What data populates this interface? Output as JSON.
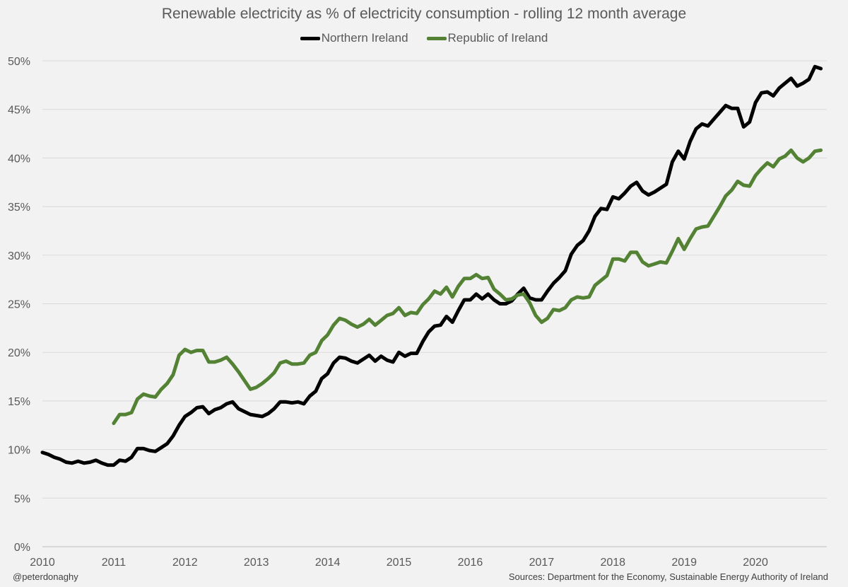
{
  "chart_data": {
    "type": "line",
    "title": "Renewable electricity as % of electricity consumption - rolling 12 month average",
    "xlabel": "",
    "ylabel": "",
    "ylim": [
      0,
      50
    ],
    "xlim": [
      2010,
      2021
    ],
    "grid": true,
    "legend_position": "top-center",
    "y_ticks": [
      "0%",
      "5%",
      "10%",
      "15%",
      "20%",
      "25%",
      "30%",
      "35%",
      "40%",
      "45%",
      "50%"
    ],
    "x_ticks": [
      "2010",
      "2011",
      "2012",
      "2013",
      "2014",
      "2015",
      "2016",
      "2017",
      "2018",
      "2019",
      "2020"
    ],
    "series": [
      {
        "name": "Northern Ireland",
        "color": "#000000",
        "start": 2010.0,
        "step_months": 1,
        "values": [
          9.7,
          9.5,
          9.2,
          9.0,
          8.7,
          8.6,
          8.8,
          8.6,
          8.7,
          8.9,
          8.6,
          8.4,
          8.4,
          8.9,
          8.8,
          9.2,
          10.1,
          10.1,
          9.9,
          9.8,
          10.2,
          10.6,
          11.4,
          12.5,
          13.4,
          13.8,
          14.3,
          14.4,
          13.7,
          14.1,
          14.3,
          14.7,
          14.9,
          14.2,
          13.9,
          13.6,
          13.5,
          13.4,
          13.7,
          14.2,
          14.9,
          14.9,
          14.8,
          14.9,
          14.7,
          15.5,
          16.0,
          17.3,
          17.8,
          18.9,
          19.5,
          19.4,
          19.1,
          18.9,
          19.3,
          19.7,
          19.1,
          19.6,
          19.2,
          19.0,
          20.0,
          19.6,
          19.9,
          19.9,
          21.1,
          22.1,
          22.7,
          22.8,
          23.7,
          23.1,
          24.3,
          25.4,
          25.4,
          26.0,
          25.5,
          26.0,
          25.4,
          25.0,
          25.0,
          25.3,
          26.0,
          26.6,
          25.6,
          25.4,
          25.4,
          26.3,
          27.1,
          27.7,
          28.4,
          30.1,
          31.0,
          31.5,
          32.5,
          34.0,
          34.8,
          34.7,
          36.0,
          35.8,
          36.4,
          37.1,
          37.5,
          36.6,
          36.2,
          36.5,
          36.9,
          37.3,
          39.6,
          40.7,
          39.9,
          41.7,
          43.0,
          43.5,
          43.3,
          44.0,
          44.7,
          45.4,
          45.1,
          45.1,
          43.2,
          43.7,
          45.7,
          46.7,
          46.8,
          46.4,
          47.2,
          47.7,
          48.2,
          47.4,
          47.7,
          48.1,
          49.4,
          49.2
        ]
      },
      {
        "name": "Republic of Ireland",
        "color": "#548235",
        "start": 2011.0,
        "step_months": 1,
        "values": [
          12.7,
          13.6,
          13.6,
          13.8,
          15.2,
          15.7,
          15.5,
          15.4,
          16.2,
          16.8,
          17.7,
          19.7,
          20.3,
          20.0,
          20.2,
          20.2,
          19.0,
          19.0,
          19.2,
          19.5,
          18.8,
          18.0,
          17.1,
          16.2,
          16.4,
          16.8,
          17.3,
          17.9,
          18.9,
          19.1,
          18.8,
          18.8,
          18.9,
          19.7,
          20.0,
          21.2,
          21.8,
          22.8,
          23.5,
          23.3,
          22.9,
          22.6,
          22.9,
          23.4,
          22.8,
          23.3,
          23.8,
          24.0,
          24.6,
          23.8,
          24.1,
          24.0,
          24.9,
          25.5,
          26.3,
          26.0,
          26.7,
          25.7,
          26.8,
          27.6,
          27.6,
          28.0,
          27.6,
          27.7,
          26.5,
          26.0,
          25.4,
          25.5,
          25.9,
          26.0,
          25.1,
          23.8,
          23.1,
          23.5,
          24.4,
          24.3,
          24.6,
          25.4,
          25.7,
          25.6,
          25.7,
          26.9,
          27.4,
          27.9,
          29.6,
          29.6,
          29.4,
          30.3,
          30.3,
          29.3,
          28.9,
          29.1,
          29.3,
          29.2,
          30.4,
          31.7,
          30.6,
          31.7,
          32.7,
          32.9,
          33.0,
          34.0,
          35.0,
          36.1,
          36.7,
          37.6,
          37.2,
          37.1,
          38.2,
          38.9,
          39.5,
          39.1,
          39.9,
          40.2,
          40.8,
          40.0,
          39.6,
          40.0,
          40.7,
          40.8
        ]
      }
    ]
  },
  "footer": {
    "credit": "@peterdonaghy",
    "sources": "Sources: Department for the Economy, Sustainable Energy Authority of Ireland"
  }
}
